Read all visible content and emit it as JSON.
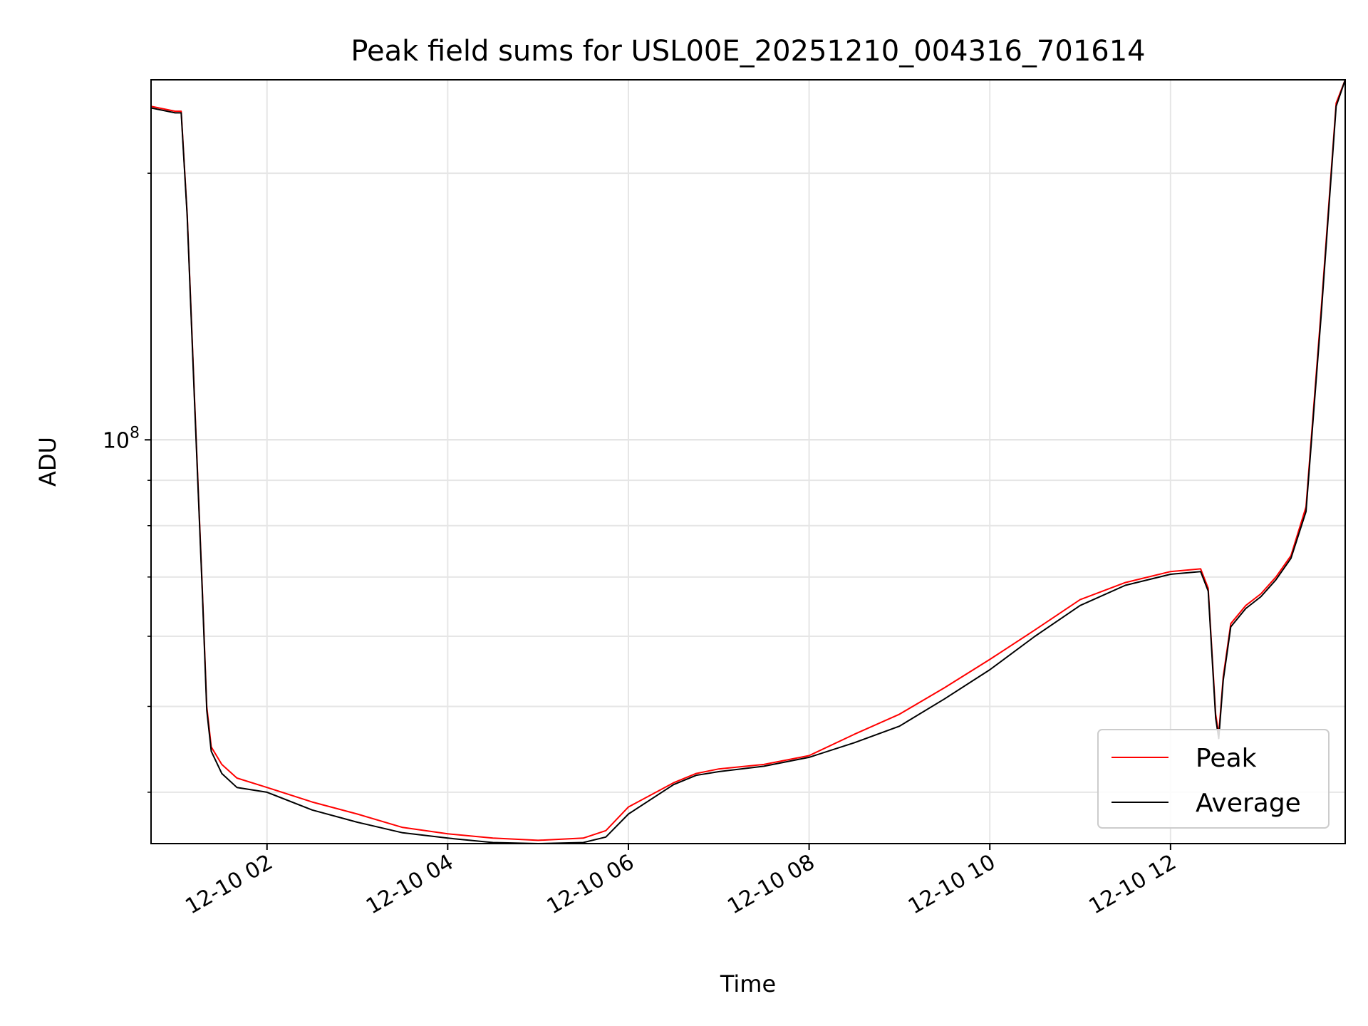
{
  "chart_data": {
    "type": "line",
    "title": "Peak field sums for USL00E_20251210_004316_701614",
    "xlabel": "Time",
    "ylabel": "ADU",
    "yscale": "log",
    "ylim": [
      35000000,
      255000000
    ],
    "xlim": [
      "2025-12-10 00:43",
      "2025-12-10 13:56"
    ],
    "x_ticks": [
      "12-10 02",
      "12-10 04",
      "12-10 06",
      "12-10 08",
      "12-10 10",
      "12-10 12"
    ],
    "y_ticks": [
      {
        "label_base": "10",
        "label_exp": "8",
        "value": 100000000
      }
    ],
    "grid": true,
    "legend": {
      "placement": "lower right",
      "entries": [
        "Peak",
        "Average"
      ]
    },
    "series": [
      {
        "name": "Peak",
        "color": "#ff0000",
        "x": [
          "2025-12-10 00:43",
          "2025-12-10 00:59",
          "2025-12-10 01:03",
          "2025-12-10 01:07",
          "2025-12-10 01:12",
          "2025-12-10 01:17",
          "2025-12-10 01:20",
          "2025-12-10 01:23",
          "2025-12-10 01:30",
          "2025-12-10 01:40",
          "2025-12-10 02:00",
          "2025-12-10 02:30",
          "2025-12-10 03:00",
          "2025-12-10 03:30",
          "2025-12-10 04:00",
          "2025-12-10 04:30",
          "2025-12-10 05:00",
          "2025-12-10 05:30",
          "2025-12-10 05:45",
          "2025-12-10 06:00",
          "2025-12-10 06:30",
          "2025-12-10 06:45",
          "2025-12-10 07:00",
          "2025-12-10 07:30",
          "2025-12-10 08:00",
          "2025-12-10 08:30",
          "2025-12-10 09:00",
          "2025-12-10 09:30",
          "2025-12-10 10:00",
          "2025-12-10 10:30",
          "2025-12-10 11:00",
          "2025-12-10 11:30",
          "2025-12-10 12:00",
          "2025-12-10 12:20",
          "2025-12-10 12:25",
          "2025-12-10 12:30",
          "2025-12-10 12:32",
          "2025-12-10 12:35",
          "2025-12-10 12:40",
          "2025-12-10 12:50",
          "2025-12-10 13:00",
          "2025-12-10 13:10",
          "2025-12-10 13:20",
          "2025-12-10 13:30",
          "2025-12-10 13:40",
          "2025-12-10 13:50",
          "2025-12-10 13:56"
        ],
        "values": [
          238000000,
          235000000,
          235000000,
          180000000,
          110000000,
          68000000,
          50000000,
          45000000,
          43000000,
          41500000,
          40500000,
          39000000,
          37800000,
          36500000,
          35900000,
          35500000,
          35300000,
          35500000,
          36200000,
          38500000,
          41000000,
          42000000,
          42500000,
          43000000,
          44000000,
          46500000,
          49000000,
          52500000,
          56500000,
          61000000,
          66000000,
          69000000,
          71000000,
          71500000,
          68000000,
          49000000,
          46500000,
          54000000,
          62000000,
          65000000,
          67000000,
          70000000,
          74000000,
          84000000,
          140000000,
          240000000,
          255000000
        ]
      },
      {
        "name": "Average",
        "color": "#000000",
        "x": [
          "2025-12-10 00:43",
          "2025-12-10 00:59",
          "2025-12-10 01:03",
          "2025-12-10 01:07",
          "2025-12-10 01:12",
          "2025-12-10 01:17",
          "2025-12-10 01:20",
          "2025-12-10 01:23",
          "2025-12-10 01:30",
          "2025-12-10 01:40",
          "2025-12-10 02:00",
          "2025-12-10 02:30",
          "2025-12-10 03:00",
          "2025-12-10 03:30",
          "2025-12-10 04:00",
          "2025-12-10 04:30",
          "2025-12-10 05:00",
          "2025-12-10 05:30",
          "2025-12-10 05:45",
          "2025-12-10 06:00",
          "2025-12-10 06:30",
          "2025-12-10 06:45",
          "2025-12-10 07:00",
          "2025-12-10 07:30",
          "2025-12-10 08:00",
          "2025-12-10 08:30",
          "2025-12-10 09:00",
          "2025-12-10 09:30",
          "2025-12-10 10:00",
          "2025-12-10 10:30",
          "2025-12-10 11:00",
          "2025-12-10 11:30",
          "2025-12-10 12:00",
          "2025-12-10 12:20",
          "2025-12-10 12:25",
          "2025-12-10 12:30",
          "2025-12-10 12:32",
          "2025-12-10 12:35",
          "2025-12-10 12:40",
          "2025-12-10 12:50",
          "2025-12-10 13:00",
          "2025-12-10 13:10",
          "2025-12-10 13:20",
          "2025-12-10 13:30",
          "2025-12-10 13:40",
          "2025-12-10 13:50",
          "2025-12-10 13:56"
        ],
        "values": [
          237000000,
          234000000,
          234000000,
          179000000,
          109000000,
          67500000,
          49500000,
          44500000,
          42000000,
          40500000,
          40000000,
          38200000,
          37000000,
          36000000,
          35500000,
          35100000,
          35000000,
          35100000,
          35600000,
          37800000,
          40800000,
          41800000,
          42200000,
          42800000,
          43800000,
          45500000,
          47500000,
          51000000,
          55000000,
          60000000,
          65000000,
          68500000,
          70500000,
          71000000,
          67500000,
          48500000,
          46000000,
          53500000,
          61500000,
          64500000,
          66500000,
          69500000,
          73500000,
          83000000,
          138000000,
          238000000,
          255000000
        ]
      }
    ]
  }
}
